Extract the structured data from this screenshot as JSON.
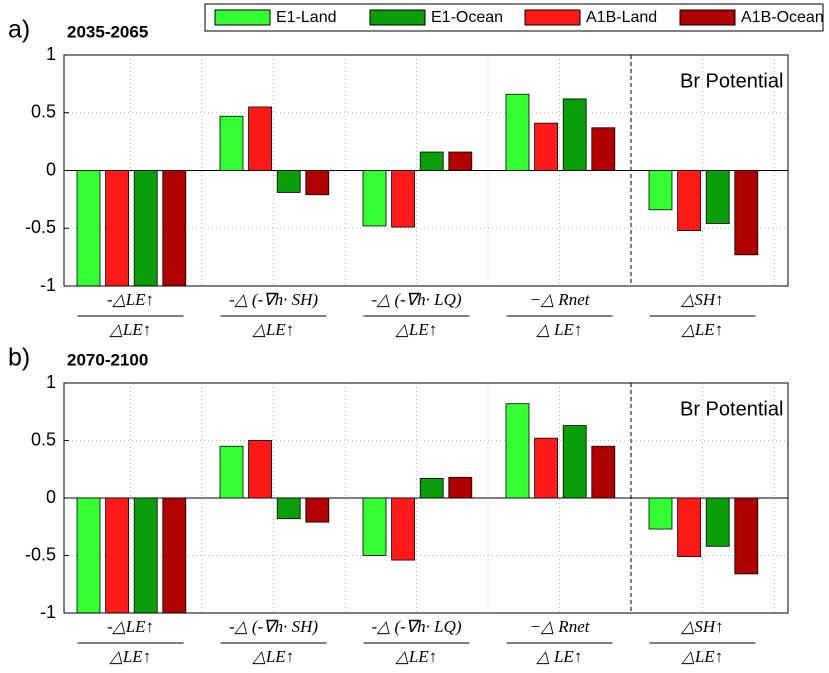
{
  "chart_data": [
    {
      "type": "bar",
      "panel_label": "a)",
      "title": "2035-2065",
      "annotation": "Br Potential",
      "categories": [
        {
          "numerator": "-△LE↑",
          "denominator": "△LE↑"
        },
        {
          "numerator": "-△ (-∇h· SH)",
          "denominator": "△LE↑"
        },
        {
          "numerator": "-△ (-∇h· LQ)",
          "denominator": "△LE↑"
        },
        {
          "numerator": "−△ Rnet",
          "denominator": "△ LE↑"
        },
        {
          "numerator": "△SH↑",
          "denominator": "△LE↑"
        }
      ],
      "series": [
        {
          "name": "E1-Land",
          "color": "#33ff33",
          "values": [
            -1,
            0.47,
            -0.48,
            0.66,
            -0.34
          ]
        },
        {
          "name": "E1-Ocean",
          "color": "#0b9e0b",
          "values": [
            -1,
            -0.19,
            0.16,
            0.62,
            -0.46
          ]
        },
        {
          "name": "A1B-Land",
          "color": "#ff1a1a",
          "values": [
            -1,
            0.55,
            -0.49,
            0.41,
            -0.52
          ]
        },
        {
          "name": "A1B-Ocean",
          "color": "#b00000",
          "values": [
            -1,
            -0.21,
            0.16,
            0.37,
            -0.73
          ]
        }
      ],
      "ylim": [
        -1,
        1
      ],
      "yticks": [
        -1,
        -0.5,
        0,
        0.5,
        1
      ],
      "grid": true
    },
    {
      "type": "bar",
      "panel_label": "b)",
      "title": "2070-2100",
      "annotation": "Br Potential",
      "categories": [
        {
          "numerator": "-△LE↑",
          "denominator": "△LE↑"
        },
        {
          "numerator": "-△ (-∇h· SH)",
          "denominator": "△LE↑"
        },
        {
          "numerator": "-△ (-∇h· LQ)",
          "denominator": "△LE↑"
        },
        {
          "numerator": "−△ Rnet",
          "denominator": "△ LE↑"
        },
        {
          "numerator": "△SH↑",
          "denominator": "△LE↑"
        }
      ],
      "series": [
        {
          "name": "E1-Land",
          "color": "#33ff33",
          "values": [
            -1,
            0.45,
            -0.5,
            0.82,
            -0.27
          ]
        },
        {
          "name": "E1-Ocean",
          "color": "#0b9e0b",
          "values": [
            -1,
            -0.18,
            0.17,
            0.63,
            -0.42
          ]
        },
        {
          "name": "A1B-Land",
          "color": "#ff1a1a",
          "values": [
            -1,
            0.5,
            -0.54,
            0.52,
            -0.51
          ]
        },
        {
          "name": "A1B-Ocean",
          "color": "#b00000",
          "values": [
            -1,
            -0.21,
            0.18,
            0.45,
            -0.66
          ]
        }
      ],
      "ylim": [
        -1,
        1
      ],
      "yticks": [
        -1,
        -0.5,
        0,
        0.5,
        1
      ],
      "grid": true
    }
  ]
}
